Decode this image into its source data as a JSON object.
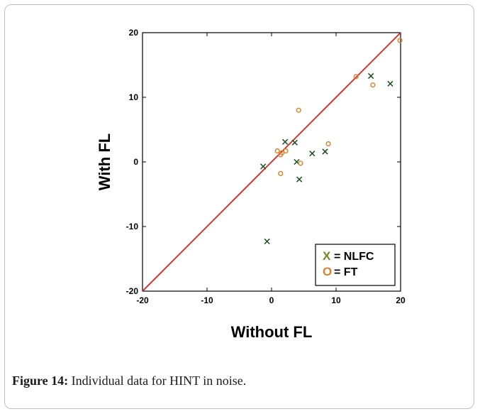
{
  "caption": {
    "label": "Figure 14:",
    "text": " Individual data for HINT in noise."
  },
  "colors": {
    "nlfc": "#1b4d1b",
    "ft": "#d9822b",
    "identity_line": "#e0201b",
    "legend_x": "#6b8e23",
    "legend_o": "#d9822b"
  },
  "chart_data": {
    "type": "scatter",
    "title": "",
    "xlabel": "Without FL",
    "ylabel": "With FL",
    "xlim": [
      -20,
      20
    ],
    "ylim": [
      -20,
      20
    ],
    "xticks": [
      -20,
      -10,
      0,
      10,
      20
    ],
    "yticks": [
      -20,
      -10,
      0,
      10,
      20
    ],
    "grid": false,
    "legend_position": "bottom-right",
    "reference_line": {
      "from": [
        -20,
        -20
      ],
      "to": [
        20,
        20
      ]
    },
    "legend": [
      {
        "symbol": "X",
        "text": "= NLFC"
      },
      {
        "symbol": "O",
        "text": "= FT"
      }
    ],
    "series": [
      {
        "name": "NLFC",
        "marker": "x",
        "points": [
          [
            -1.3,
            -0.7
          ],
          [
            -0.7,
            -12.3
          ],
          [
            2.1,
            3.1
          ],
          [
            3.6,
            3.0
          ],
          [
            3.9,
            0.0
          ],
          [
            4.3,
            -2.7
          ],
          [
            6.3,
            1.3
          ],
          [
            8.3,
            1.6
          ],
          [
            15.4,
            13.3
          ],
          [
            18.4,
            12.1
          ]
        ]
      },
      {
        "name": "FT",
        "marker": "o",
        "points": [
          [
            0.9,
            1.7
          ],
          [
            1.4,
            1.1
          ],
          [
            1.6,
            1.4
          ],
          [
            2.2,
            1.7
          ],
          [
            1.4,
            -1.8
          ],
          [
            4.2,
            8.0
          ],
          [
            4.5,
            -0.2
          ],
          [
            8.8,
            2.8
          ],
          [
            13.1,
            13.2
          ],
          [
            15.7,
            11.9
          ],
          [
            19.9,
            18.8
          ]
        ]
      }
    ]
  }
}
